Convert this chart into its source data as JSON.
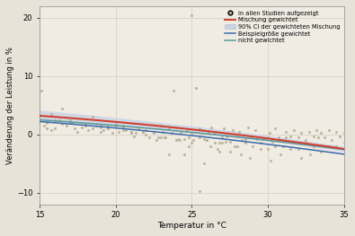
{
  "xlabel": "Temperatur in °C",
  "ylabel": "Veränderung der Leistung in %",
  "xlim": [
    15,
    35
  ],
  "ylim": [
    -12,
    22
  ],
  "yticks": [
    -10,
    0,
    10,
    20
  ],
  "xticks": [
    15,
    20,
    25,
    30,
    35
  ],
  "outer_bg_color": "#e8e3d8",
  "plot_bg_color": "#f0ece4",
  "grid_color": "#d8d2c8",
  "scatter_color": "#b8ad96",
  "ci_color": "#c8d4e5",
  "line_red_color": "#d04030",
  "line_blue_color": "#3a6aaa",
  "line_teal_color": "#5a9898",
  "legend_labels": [
    "in allen Studien aufgezeigt",
    "Mischung gewichtet",
    "90% CI der gewichteten Mischung",
    "Beispielgröße gewichtet",
    "nicht gewichtet"
  ],
  "scatter_x": [
    15.1,
    15.3,
    15.5,
    15.8,
    16.0,
    16.3,
    16.5,
    16.8,
    17.0,
    17.3,
    17.5,
    17.8,
    18.0,
    18.2,
    18.5,
    18.7,
    19.0,
    19.2,
    19.5,
    19.8,
    20.0,
    20.2,
    20.5,
    20.7,
    21.0,
    21.2,
    21.5,
    21.8,
    22.0,
    22.2,
    22.5,
    22.7,
    23.0,
    23.1,
    23.3,
    23.5,
    23.7,
    23.8,
    24.0,
    24.1,
    24.3,
    24.5,
    24.7,
    24.8,
    25.0,
    25.0,
    25.1,
    25.3,
    25.5,
    25.5,
    25.7,
    25.8,
    26.0,
    26.1,
    26.3,
    26.5,
    26.7,
    26.8,
    27.0,
    27.1,
    27.3,
    27.5,
    27.7,
    27.8,
    28.0,
    28.1,
    28.3,
    28.5,
    28.7,
    28.9,
    29.0,
    29.2,
    29.5,
    29.7,
    30.0,
    30.1,
    30.3,
    30.5,
    30.7,
    31.0,
    31.2,
    31.5,
    31.7,
    32.0,
    32.2,
    32.5,
    32.7,
    33.0,
    33.2,
    33.5,
    33.7,
    34.0,
    34.2,
    34.5,
    34.7,
    35.0,
    35.0,
    15.5,
    16.0,
    17.0,
    18.0,
    19.0,
    20.0,
    21.0,
    22.0,
    23.0,
    24.0,
    25.0,
    26.0,
    27.0,
    28.0,
    29.0,
    30.0,
    31.0,
    32.0,
    33.0,
    34.0,
    15.8,
    17.2,
    19.5,
    21.3,
    23.2,
    25.5,
    27.2,
    29.3,
    31.2,
    33.3,
    16.5,
    18.5,
    20.5,
    22.5,
    24.5,
    26.5,
    28.5,
    30.5,
    32.5,
    34.5,
    17.0,
    19.0,
    21.0,
    23.5,
    25.8,
    27.5,
    29.5,
    31.5,
    33.5,
    18.0,
    20.5,
    22.8,
    24.8,
    26.8,
    28.8,
    30.8,
    32.8,
    19.5,
    21.8,
    24.2,
    26.2,
    28.2,
    30.2,
    32.2
  ],
  "scatter_y": [
    7.5,
    1.5,
    2.0,
    0.8,
    1.0,
    2.5,
    1.8,
    1.5,
    2.0,
    1.0,
    0.5,
    1.2,
    1.5,
    0.8,
    1.0,
    1.5,
    0.5,
    0.8,
    1.0,
    0.3,
    1.8,
    0.5,
    1.2,
    0.8,
    0.3,
    -0.3,
    1.0,
    0.5,
    0.8,
    -0.5,
    0.3,
    -1.0,
    1.5,
    0.5,
    -0.5,
    1.0,
    0.3,
    7.5,
    1.2,
    -0.8,
    0.5,
    -3.5,
    0.8,
    -0.5,
    20.5,
    0.3,
    -1.0,
    8.0,
    -0.5,
    1.0,
    0.8,
    -0.8,
    -1.0,
    0.5,
    1.2,
    0.3,
    -2.5,
    -1.5,
    -0.5,
    1.0,
    -0.3,
    -1.2,
    0.8,
    -2.0,
    -0.3,
    0.5,
    -1.0,
    -0.8,
    1.2,
    -0.5,
    -0.3,
    0.8,
    -1.5,
    -0.8,
    -0.5,
    0.3,
    -1.2,
    1.0,
    -0.5,
    -1.0,
    0.5,
    -0.3,
    0.8,
    -0.5,
    0.3,
    -1.0,
    0.5,
    -0.3,
    0.8,
    0.3,
    -0.5,
    0.8,
    -1.0,
    0.5,
    -0.3,
    -1.5,
    0.3,
    1.0,
    2.5,
    2.0,
    1.5,
    1.2,
    1.5,
    0.5,
    0.0,
    -0.5,
    -1.0,
    -1.5,
    -1.0,
    -1.5,
    -2.0,
    -2.0,
    -2.5,
    -2.0,
    -2.5,
    -2.0,
    -2.0,
    3.5,
    2.0,
    1.0,
    0.3,
    -0.5,
    -9.8,
    -1.2,
    -0.8,
    -0.5,
    -0.5,
    4.5,
    3.0,
    1.5,
    0.5,
    -0.8,
    -1.5,
    -1.5,
    -2.0,
    -1.5,
    -2.0,
    2.5,
    1.5,
    0.5,
    -3.5,
    -5.0,
    -3.0,
    -2.5,
    -2.5,
    -3.0,
    1.8,
    0.8,
    -0.5,
    -2.0,
    -3.0,
    -4.0,
    -3.5,
    -3.5,
    1.5,
    0.5,
    -1.0,
    -2.0,
    -3.5,
    -4.5,
    -4.0
  ]
}
